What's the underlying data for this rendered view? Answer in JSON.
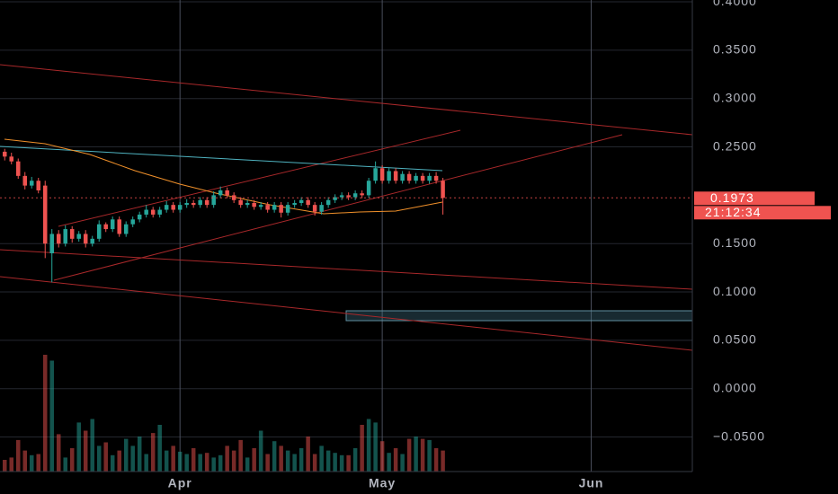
{
  "chart_data": {
    "type": "candlestick",
    "x": [
      0,
      1,
      2,
      3,
      4,
      5,
      6,
      7,
      8,
      9,
      10,
      11,
      12,
      13,
      14,
      15,
      16,
      17,
      18,
      19,
      20,
      21,
      22,
      23,
      24,
      25,
      26,
      27,
      28,
      29,
      30,
      31,
      32,
      33,
      34,
      35,
      36,
      37,
      38,
      39,
      40,
      41,
      42,
      43,
      44,
      45,
      46,
      47,
      48,
      49,
      50,
      51,
      52,
      53,
      54,
      55,
      56,
      57,
      58,
      59,
      60,
      61,
      62,
      63,
      64,
      65
    ],
    "open": [
      0.245,
      0.24,
      0.235,
      0.22,
      0.21,
      0.215,
      0.21,
      0.14,
      0.16,
      0.15,
      0.165,
      0.155,
      0.16,
      0.15,
      0.155,
      0.17,
      0.165,
      0.175,
      0.16,
      0.17,
      0.175,
      0.18,
      0.185,
      0.18,
      0.185,
      0.19,
      0.185,
      0.19,
      0.192,
      0.19,
      0.195,
      0.19,
      0.2,
      0.205,
      0.2,
      0.195,
      0.19,
      0.192,
      0.188,
      0.19,
      0.185,
      0.19,
      0.182,
      0.19,
      0.192,
      0.195,
      0.19,
      0.183,
      0.19,
      0.195,
      0.198,
      0.2,
      0.198,
      0.202,
      0.2,
      0.215,
      0.228,
      0.215,
      0.225,
      0.215,
      0.222,
      0.215,
      0.22,
      0.215,
      0.22,
      0.215
    ],
    "close": [
      0.24,
      0.235,
      0.22,
      0.21,
      0.215,
      0.205,
      0.15,
      0.16,
      0.15,
      0.165,
      0.155,
      0.16,
      0.15,
      0.155,
      0.17,
      0.165,
      0.175,
      0.16,
      0.17,
      0.175,
      0.18,
      0.185,
      0.18,
      0.185,
      0.19,
      0.185,
      0.19,
      0.192,
      0.19,
      0.195,
      0.19,
      0.2,
      0.205,
      0.2,
      0.195,
      0.19,
      0.192,
      0.188,
      0.19,
      0.185,
      0.19,
      0.182,
      0.19,
      0.192,
      0.195,
      0.19,
      0.183,
      0.19,
      0.195,
      0.198,
      0.2,
      0.198,
      0.202,
      0.2,
      0.215,
      0.228,
      0.215,
      0.225,
      0.215,
      0.222,
      0.215,
      0.22,
      0.215,
      0.22,
      0.215,
      0.1973
    ],
    "high": [
      0.248,
      0.244,
      0.238,
      0.224,
      0.219,
      0.218,
      0.215,
      0.165,
      0.164,
      0.169,
      0.168,
      0.163,
      0.164,
      0.158,
      0.174,
      0.172,
      0.178,
      0.178,
      0.173,
      0.178,
      0.183,
      0.19,
      0.188,
      0.188,
      0.194,
      0.193,
      0.193,
      0.196,
      0.195,
      0.198,
      0.198,
      0.204,
      0.209,
      0.208,
      0.203,
      0.198,
      0.195,
      0.195,
      0.193,
      0.193,
      0.193,
      0.193,
      0.193,
      0.195,
      0.198,
      0.198,
      0.193,
      0.193,
      0.198,
      0.201,
      0.203,
      0.203,
      0.205,
      0.205,
      0.218,
      0.235,
      0.231,
      0.228,
      0.228,
      0.225,
      0.225,
      0.223,
      0.223,
      0.223,
      0.224,
      0.218
    ],
    "low": [
      0.236,
      0.232,
      0.217,
      0.206,
      0.207,
      0.202,
      0.135,
      0.11,
      0.146,
      0.147,
      0.151,
      0.152,
      0.146,
      0.147,
      0.152,
      0.162,
      0.162,
      0.157,
      0.157,
      0.167,
      0.172,
      0.177,
      0.177,
      0.177,
      0.182,
      0.182,
      0.182,
      0.187,
      0.187,
      0.187,
      0.187,
      0.187,
      0.197,
      0.197,
      0.192,
      0.187,
      0.187,
      0.185,
      0.185,
      0.182,
      0.182,
      0.177,
      0.179,
      0.187,
      0.189,
      0.187,
      0.179,
      0.18,
      0.187,
      0.192,
      0.195,
      0.195,
      0.195,
      0.197,
      0.197,
      0.212,
      0.212,
      0.212,
      0.212,
      0.212,
      0.212,
      0.212,
      0.212,
      0.212,
      0.212,
      0.18
    ],
    "volume": [
      10,
      12,
      27,
      18,
      14,
      15,
      100,
      95,
      32,
      12,
      20,
      42,
      35,
      45,
      22,
      25,
      14,
      18,
      28,
      22,
      30,
      15,
      33,
      40,
      18,
      22,
      17,
      15,
      20,
      15,
      16,
      12,
      14,
      22,
      18,
      27,
      12,
      20,
      35,
      15,
      26,
      22,
      18,
      15,
      20,
      30,
      15,
      22,
      18,
      16,
      14,
      14,
      20,
      40,
      45,
      42,
      26,
      16,
      20,
      15,
      28,
      30,
      28,
      27,
      20,
      18
    ],
    "up_color": "#26a69a",
    "down_color": "#ef5350",
    "xlim": [
      -0.7,
      102
    ],
    "xticks": [
      {
        "value": 26,
        "label": "Apr"
      },
      {
        "value": 56,
        "label": "May"
      },
      {
        "value": 87,
        "label": "Jun"
      }
    ],
    "ylim": [
      -0.0857,
      0.4019
    ],
    "yticks": [
      {
        "value": 0.4,
        "label": "0.4000"
      },
      {
        "value": 0.35,
        "label": "0.3500"
      },
      {
        "value": 0.3,
        "label": "0.3000"
      },
      {
        "value": 0.25,
        "label": "0.2500"
      },
      {
        "value": 0.15,
        "label": "0.1500"
      },
      {
        "value": 0.1,
        "label": "0.1000"
      },
      {
        "value": 0.05,
        "label": "0.0500"
      },
      {
        "value": 0,
        "label": "0.0000"
      },
      {
        "value": -0.05,
        "label": "−0.0500"
      }
    ],
    "grid": true,
    "last_price": 0.1973,
    "countdown": "21:12:34"
  }
}
